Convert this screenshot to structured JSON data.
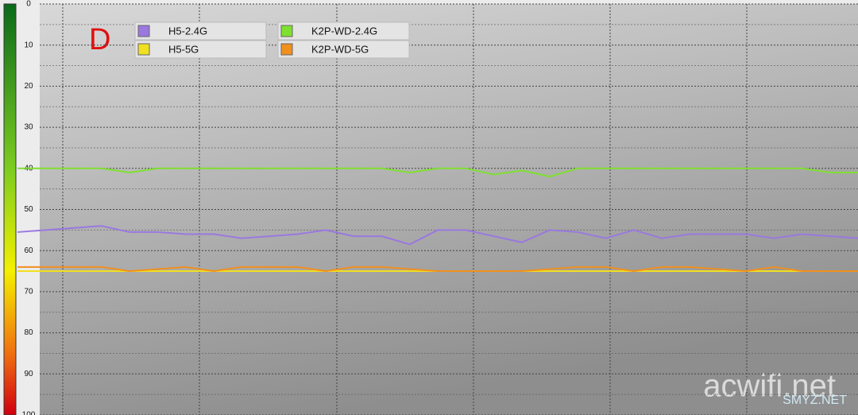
{
  "chart_data": {
    "type": "line",
    "annotations": [
      "D",
      "acwifi.net",
      "SMYZ.NET"
    ],
    "categories": [
      null,
      null,
      null,
      null,
      null,
      null,
      null,
      null,
      null,
      null,
      null,
      null,
      null,
      null,
      null,
      null,
      null,
      null,
      null,
      null,
      null,
      null,
      null,
      null,
      null,
      null,
      null,
      null,
      null,
      null,
      null
    ],
    "series": [
      {
        "name": "H5-2.4G",
        "color": "#9a78e0",
        "values": [
          55.5,
          55,
          54.5,
          54,
          55.5,
          55.5,
          56,
          56,
          57,
          56.5,
          56,
          55,
          56.5,
          56.5,
          58.5,
          55,
          55,
          56.5,
          58,
          55,
          55.5,
          57,
          55,
          57,
          56,
          56,
          56,
          57,
          56,
          56.5,
          57
        ]
      },
      {
        "name": "K2P-WD-2.4G",
        "color": "#7fe030",
        "values": [
          40,
          40,
          40,
          40,
          41,
          40,
          40,
          40,
          40,
          40,
          40,
          40,
          40,
          40,
          41,
          40,
          40,
          41.5,
          40.5,
          42,
          40,
          40,
          40,
          40,
          40,
          40,
          40,
          40,
          40,
          41,
          41
        ]
      },
      {
        "name": "H5-5G",
        "color": "#f0e020",
        "values": [
          65,
          65,
          65,
          65,
          65,
          65,
          65,
          65,
          65,
          65,
          65,
          65,
          65,
          65,
          65,
          65,
          65,
          65,
          65,
          65,
          65,
          65,
          65,
          65,
          65,
          65,
          65,
          65,
          65,
          65,
          65
        ]
      },
      {
        "name": "K2P-WD-5G",
        "color": "#f0901e",
        "values": [
          64,
          64,
          64,
          64,
          65,
          64.5,
          64,
          65,
          64,
          64,
          64,
          65,
          64,
          64,
          64.5,
          65,
          65,
          65,
          65,
          64.5,
          64,
          64,
          65,
          64,
          64,
          64.5,
          65,
          64,
          65,
          65,
          65
        ]
      }
    ],
    "ylim": [
      0,
      100
    ],
    "yticks": [
      0,
      10,
      20,
      30,
      40,
      50,
      60,
      70,
      80,
      90,
      100
    ],
    "y_inverted": true,
    "grid": true
  }
}
